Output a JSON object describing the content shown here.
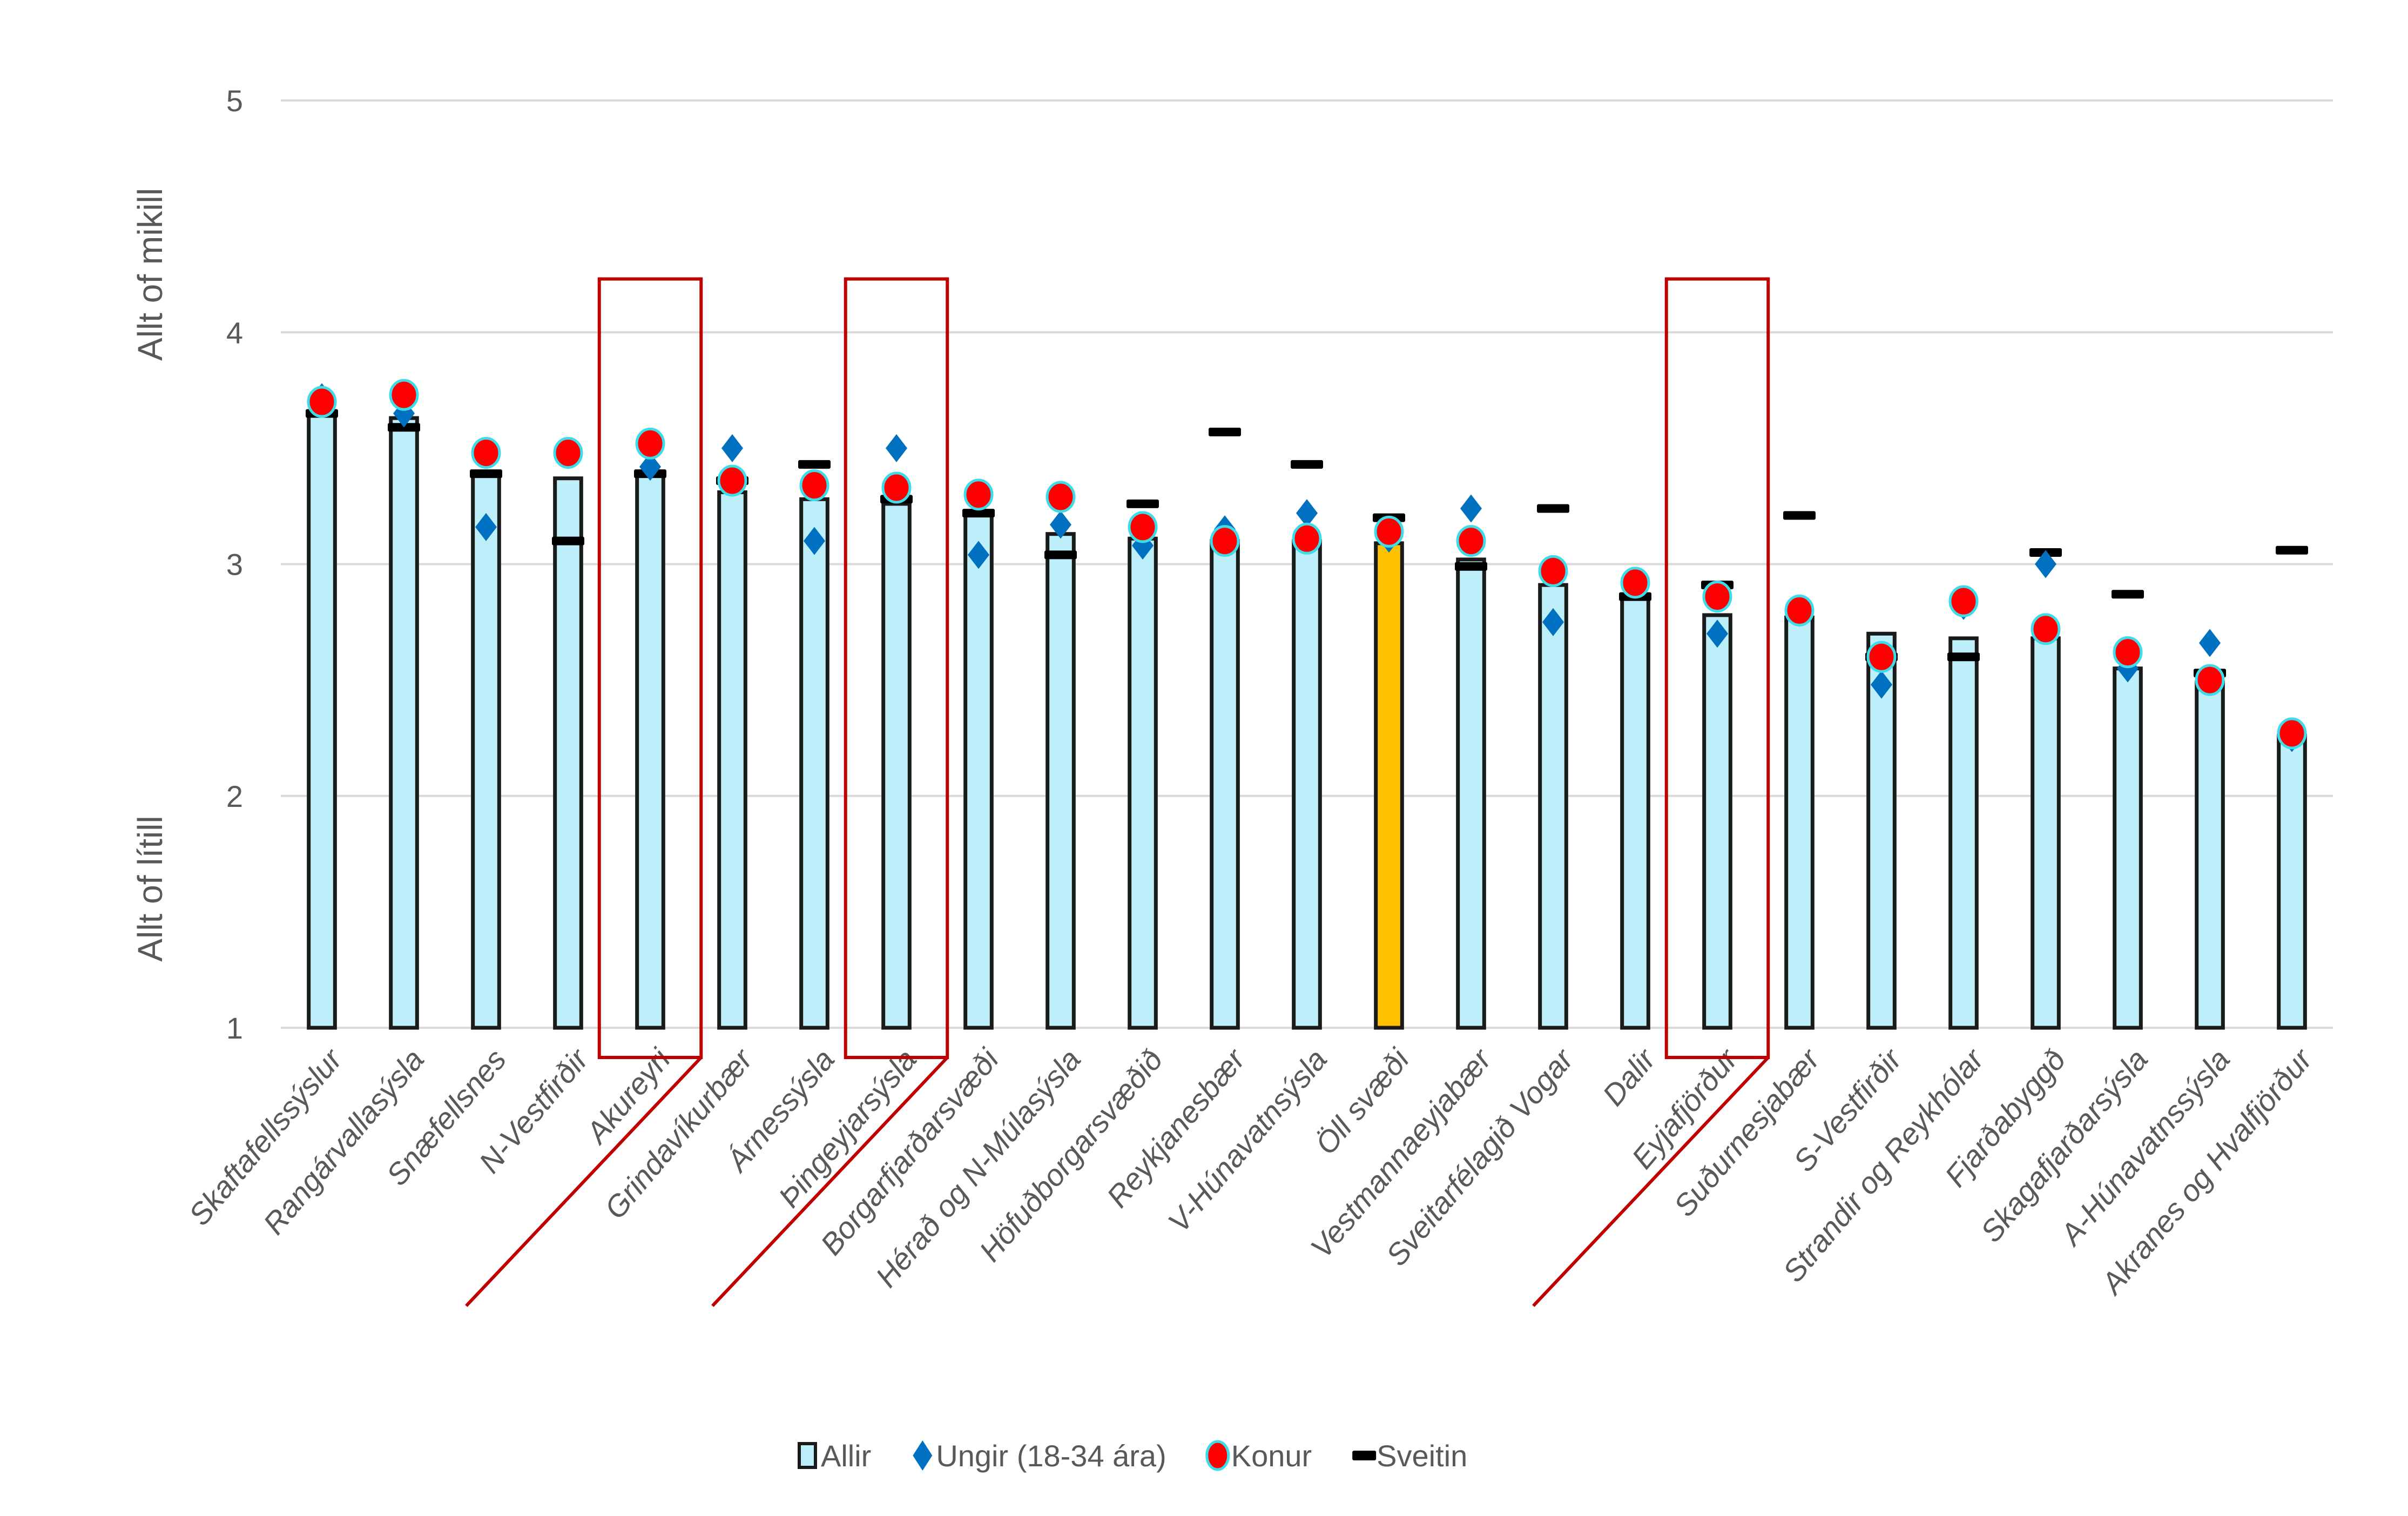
{
  "chart_data": {
    "type": "bar",
    "title": "",
    "xlabel": "",
    "ylabel_top": "Allt of mikill",
    "ylabel_bottom": "Allt of lítill",
    "ylim": [
      1,
      5
    ],
    "yticks": [
      1,
      2,
      3,
      4,
      5
    ],
    "grid": true,
    "legend_position": "bottom",
    "categories": [
      "Skaftafellssýslur",
      "Rangárvallasýsla",
      "Snæfellsnes",
      "N-Vestfirðir",
      "Akureyri",
      "Grindavíkurbær",
      "Árnessýsla",
      "Þingeyjarsýsla",
      "Borgarfjarðarsvæði",
      "Hérað og N-Múlasýsla",
      "Höfuðborgarsvæðið",
      "Reykjanesbær",
      "V-Húnavatnsýsla",
      "Öll svæði",
      "Vestmannaeyjabær",
      "Sveitarfélagið Vogar",
      "Dalir",
      "Eyjafjörður",
      "Suðurnesjabær",
      "S-Vestfirðir",
      "Strandir og Reykhólar",
      "Fjarðabyggð",
      "Skagafjarðarsýsla",
      "A-Húnavatnssýsla",
      "Akranes og Hvalfjörður"
    ],
    "series": [
      {
        "name": "Allir",
        "marker": "bar",
        "color": "#BDEFFA",
        "values": [
          3.65,
          3.63,
          3.38,
          3.37,
          3.38,
          3.31,
          3.28,
          3.26,
          3.21,
          3.13,
          3.11,
          3.1,
          3.1,
          3.09,
          3.02,
          2.91,
          2.86,
          2.78,
          2.77,
          2.7,
          2.68,
          2.68,
          2.55,
          2.49,
          2.26
        ]
      },
      {
        "name": "Ungir (18-34 ára)",
        "marker": "diamond",
        "color": "#0070C0",
        "values": [
          3.72,
          3.65,
          3.16,
          3.47,
          3.42,
          3.5,
          3.1,
          3.5,
          3.04,
          3.17,
          3.08,
          3.15,
          3.22,
          3.11,
          3.24,
          2.75,
          2.91,
          2.7,
          2.79,
          2.48,
          2.82,
          3.0,
          2.55,
          2.66,
          2.25
        ]
      },
      {
        "name": "Konur",
        "marker": "circle",
        "color": "#FF0000",
        "values": [
          3.7,
          3.73,
          3.48,
          3.48,
          3.52,
          3.36,
          3.34,
          3.33,
          3.3,
          3.29,
          3.16,
          3.1,
          3.11,
          3.14,
          3.1,
          2.97,
          2.92,
          2.86,
          2.8,
          2.6,
          2.84,
          2.72,
          2.62,
          2.5,
          2.27
        ]
      },
      {
        "name": "Sveitin",
        "marker": "dash",
        "color": "#000000",
        "values": [
          3.65,
          3.59,
          3.39,
          3.1,
          3.39,
          3.36,
          3.43,
          3.28,
          3.22,
          3.04,
          3.26,
          3.57,
          3.43,
          3.2,
          2.99,
          3.24,
          2.86,
          2.91,
          3.21,
          2.6,
          2.6,
          3.05,
          2.87,
          2.53,
          3.06
        ]
      }
    ],
    "highlighted_category": "Öll svæði",
    "highlight_color": "#FFC000",
    "annotations": [
      {
        "type": "box",
        "category": "Akureyri",
        "color": "#C00000"
      },
      {
        "type": "box",
        "category": "Þingeyjarsýsla",
        "color": "#C00000"
      },
      {
        "type": "box",
        "category": "Eyjafjörður",
        "color": "#C00000"
      }
    ]
  }
}
